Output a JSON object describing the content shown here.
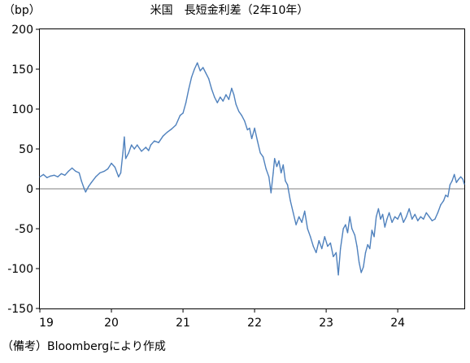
{
  "chart_data": {
    "type": "line",
    "title": "米国　長短金利差（2年10年）",
    "ylabel": "（bp）",
    "xlabel": "",
    "ylim": [
      -150,
      200
    ],
    "yticks": [
      200,
      150,
      100,
      50,
      0,
      -50,
      -100,
      -150
    ],
    "xticks": [
      "19",
      "20",
      "21",
      "22",
      "23",
      "24"
    ],
    "xlim": [
      2019,
      2024.93
    ],
    "grid": false,
    "legend": "none",
    "zero_line": true,
    "series": [
      {
        "color": "#4F81BD",
        "points": [
          [
            2019.0,
            15
          ],
          [
            2019.05,
            18
          ],
          [
            2019.1,
            14
          ],
          [
            2019.15,
            16
          ],
          [
            2019.2,
            17
          ],
          [
            2019.25,
            15
          ],
          [
            2019.3,
            19
          ],
          [
            2019.35,
            17
          ],
          [
            2019.4,
            22
          ],
          [
            2019.45,
            26
          ],
          [
            2019.5,
            22
          ],
          [
            2019.55,
            20
          ],
          [
            2019.58,
            10
          ],
          [
            2019.62,
            0
          ],
          [
            2019.64,
            -4
          ],
          [
            2019.68,
            3
          ],
          [
            2019.72,
            8
          ],
          [
            2019.78,
            15
          ],
          [
            2019.84,
            20
          ],
          [
            2019.9,
            22
          ],
          [
            2019.95,
            25
          ],
          [
            2020.0,
            32
          ],
          [
            2020.05,
            27
          ],
          [
            2020.1,
            15
          ],
          [
            2020.13,
            20
          ],
          [
            2020.16,
            45
          ],
          [
            2020.18,
            65
          ],
          [
            2020.2,
            38
          ],
          [
            2020.24,
            45
          ],
          [
            2020.28,
            55
          ],
          [
            2020.32,
            50
          ],
          [
            2020.36,
            55
          ],
          [
            2020.42,
            47
          ],
          [
            2020.48,
            52
          ],
          [
            2020.52,
            48
          ],
          [
            2020.55,
            55
          ],
          [
            2020.6,
            60
          ],
          [
            2020.66,
            58
          ],
          [
            2020.72,
            66
          ],
          [
            2020.78,
            71
          ],
          [
            2020.84,
            75
          ],
          [
            2020.9,
            80
          ],
          [
            2020.96,
            92
          ],
          [
            2021.0,
            95
          ],
          [
            2021.04,
            108
          ],
          [
            2021.08,
            125
          ],
          [
            2021.12,
            140
          ],
          [
            2021.16,
            150
          ],
          [
            2021.2,
            158
          ],
          [
            2021.24,
            148
          ],
          [
            2021.28,
            152
          ],
          [
            2021.32,
            145
          ],
          [
            2021.36,
            138
          ],
          [
            2021.4,
            125
          ],
          [
            2021.44,
            115
          ],
          [
            2021.48,
            108
          ],
          [
            2021.52,
            115
          ],
          [
            2021.56,
            110
          ],
          [
            2021.6,
            118
          ],
          [
            2021.64,
            112
          ],
          [
            2021.68,
            126
          ],
          [
            2021.71,
            118
          ],
          [
            2021.74,
            106
          ],
          [
            2021.78,
            97
          ],
          [
            2021.82,
            92
          ],
          [
            2021.86,
            85
          ],
          [
            2021.9,
            74
          ],
          [
            2021.93,
            76
          ],
          [
            2021.96,
            63
          ],
          [
            2022.0,
            76
          ],
          [
            2022.04,
            60
          ],
          [
            2022.08,
            45
          ],
          [
            2022.12,
            40
          ],
          [
            2022.16,
            25
          ],
          [
            2022.2,
            15
          ],
          [
            2022.23,
            -5
          ],
          [
            2022.26,
            20
          ],
          [
            2022.28,
            38
          ],
          [
            2022.31,
            28
          ],
          [
            2022.34,
            35
          ],
          [
            2022.37,
            20
          ],
          [
            2022.4,
            30
          ],
          [
            2022.43,
            10
          ],
          [
            2022.46,
            5
          ],
          [
            2022.5,
            -15
          ],
          [
            2022.54,
            -30
          ],
          [
            2022.58,
            -45
          ],
          [
            2022.62,
            -35
          ],
          [
            2022.66,
            -42
          ],
          [
            2022.7,
            -28
          ],
          [
            2022.74,
            -50
          ],
          [
            2022.78,
            -60
          ],
          [
            2022.82,
            -72
          ],
          [
            2022.86,
            -80
          ],
          [
            2022.9,
            -65
          ],
          [
            2022.94,
            -75
          ],
          [
            2022.98,
            -60
          ],
          [
            2023.02,
            -72
          ],
          [
            2023.06,
            -68
          ],
          [
            2023.1,
            -85
          ],
          [
            2023.14,
            -80
          ],
          [
            2023.17,
            -108
          ],
          [
            2023.2,
            -75
          ],
          [
            2023.24,
            -50
          ],
          [
            2023.27,
            -45
          ],
          [
            2023.3,
            -55
          ],
          [
            2023.33,
            -35
          ],
          [
            2023.36,
            -50
          ],
          [
            2023.4,
            -58
          ],
          [
            2023.43,
            -72
          ],
          [
            2023.46,
            -92
          ],
          [
            2023.49,
            -105
          ],
          [
            2023.52,
            -98
          ],
          [
            2023.55,
            -80
          ],
          [
            2023.58,
            -70
          ],
          [
            2023.61,
            -75
          ],
          [
            2023.64,
            -52
          ],
          [
            2023.67,
            -60
          ],
          [
            2023.7,
            -35
          ],
          [
            2023.73,
            -25
          ],
          [
            2023.76,
            -38
          ],
          [
            2023.79,
            -32
          ],
          [
            2023.82,
            -48
          ],
          [
            2023.85,
            -38
          ],
          [
            2023.88,
            -30
          ],
          [
            2023.92,
            -42
          ],
          [
            2023.96,
            -35
          ],
          [
            2024.0,
            -38
          ],
          [
            2024.04,
            -30
          ],
          [
            2024.08,
            -42
          ],
          [
            2024.12,
            -35
          ],
          [
            2024.16,
            -25
          ],
          [
            2024.2,
            -38
          ],
          [
            2024.24,
            -32
          ],
          [
            2024.28,
            -40
          ],
          [
            2024.32,
            -35
          ],
          [
            2024.36,
            -38
          ],
          [
            2024.4,
            -30
          ],
          [
            2024.44,
            -35
          ],
          [
            2024.48,
            -40
          ],
          [
            2024.52,
            -38
          ],
          [
            2024.56,
            -30
          ],
          [
            2024.6,
            -20
          ],
          [
            2024.64,
            -15
          ],
          [
            2024.67,
            -8
          ],
          [
            2024.7,
            -10
          ],
          [
            2024.73,
            5
          ],
          [
            2024.76,
            10
          ],
          [
            2024.79,
            18
          ],
          [
            2024.82,
            8
          ],
          [
            2024.85,
            12
          ],
          [
            2024.88,
            15
          ],
          [
            2024.91,
            12
          ],
          [
            2024.93,
            6
          ]
        ]
      }
    ]
  },
  "footer": {
    "source": "（備考）Bloombergにより作成"
  }
}
